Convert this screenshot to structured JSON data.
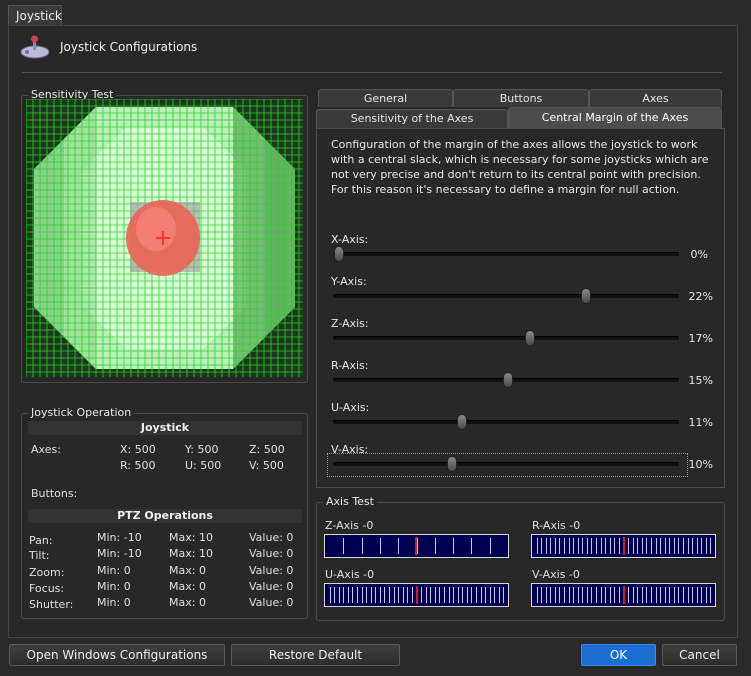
{
  "window": {
    "tab_label": "Joystick"
  },
  "header": {
    "title": "Joystick Configurations",
    "icon": "joystick-icon"
  },
  "sensitivity": {
    "title": "Sensitivity Test"
  },
  "operation": {
    "title": "Joystick Operation",
    "joystick_header": "Joystick",
    "axes_label": "Axes:",
    "axes": [
      "X: 500",
      "Y: 500",
      "Z: 500",
      "R: 500",
      "U: 500",
      "V: 500"
    ],
    "buttons_label": "Buttons:",
    "ptz_header": "PTZ Operations",
    "ptz_rows": [
      {
        "label": "Pan:",
        "min": "Min: -10",
        "max": "Max: 10",
        "value": "Value: 0"
      },
      {
        "label": "Tilt:",
        "min": "Min: -10",
        "max": "Max: 10",
        "value": "Value: 0"
      },
      {
        "label": "Zoom:",
        "min": "Min: 0",
        "max": "Max: 0",
        "value": "Value: 0"
      },
      {
        "label": "Focus:",
        "min": "Min: 0",
        "max": "Max: 0",
        "value": "Value: 0"
      },
      {
        "label": "Shutter:",
        "min": "Min: 0",
        "max": "Max: 0",
        "value": "Value: 0"
      }
    ]
  },
  "tabs": {
    "row_back": [
      "General",
      "Buttons",
      "Axes"
    ],
    "row_front": [
      "Sensitivity of the Axes",
      "Central Margin of the Axes"
    ],
    "active": "Central Margin of the Axes"
  },
  "margin": {
    "description": "Configuration of the margin of the axes allows the joystick to work with a central slack, which is necessary for some joysticks which are not very precise and don't return to its central point with precision. For this reason it's necessary to define a margin for null action.",
    "sliders": [
      {
        "label": "X-Axis:",
        "value": 0,
        "display": "0%"
      },
      {
        "label": "Y-Axis:",
        "value": 22,
        "display": "22%"
      },
      {
        "label": "Z-Axis:",
        "value": 17,
        "display": "17%"
      },
      {
        "label": "R-Axis:",
        "value": 15,
        "display": "15%"
      },
      {
        "label": "U-Axis:",
        "value": 11,
        "display": "11%"
      },
      {
        "label": "V-Axis:",
        "value": 10,
        "display": "10%"
      }
    ]
  },
  "axis_test": {
    "title": "Axis Test",
    "axes": [
      {
        "label": "Z-Axis -0",
        "ticks": 10
      },
      {
        "label": "R-Axis -0",
        "ticks": 40
      },
      {
        "label": "U-Axis -0",
        "ticks": 40
      },
      {
        "label": "V-Axis -0",
        "ticks": 40
      }
    ]
  },
  "buttons": {
    "open_windows": "Open Windows Configurations",
    "restore": "Restore Default",
    "ok": "OK",
    "cancel": "Cancel"
  },
  "colors": {
    "ok_button": "#1b6fd2",
    "axis_bar_bg": "#000050",
    "axis_center": "#e01818",
    "grid_green": "#33cc33",
    "crosshair_red": "#ff3030"
  }
}
